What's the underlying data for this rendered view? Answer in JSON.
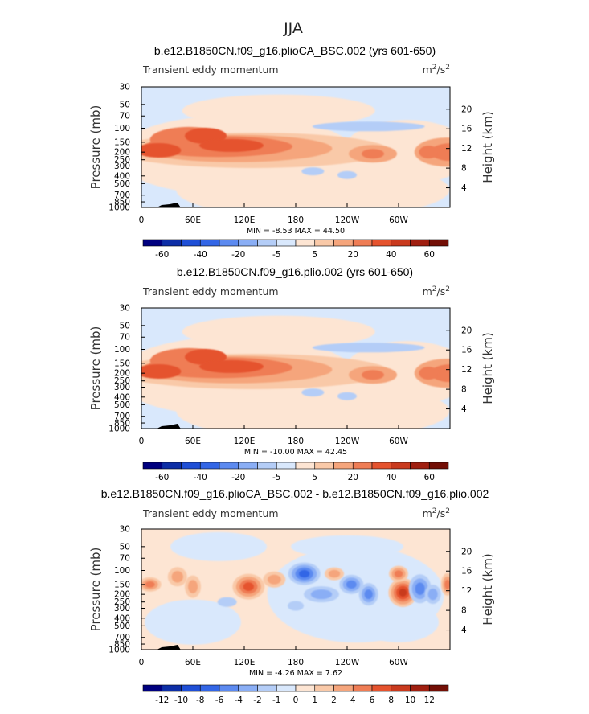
{
  "figure": {
    "season": "JJA"
  },
  "chart_data": [
    {
      "type": "heatmap",
      "panel": "top",
      "title": "b.e12.B1850CN.f09_g16.plioCA_BSC.002 (yrs 601-650)",
      "left_label": "Transient eddy momentum",
      "units": "m²/s²",
      "units_base": "m",
      "units_exp1": "2",
      "units_mid": "/s",
      "units_exp2": "2",
      "ylabel": "Pressure (mb)",
      "y2label": "Height (km)",
      "pressure_ticks": [
        "30",
        "50",
        "70",
        "100",
        "150",
        "200",
        "250",
        "300",
        "400",
        "500",
        "700",
        "850",
        "1000"
      ],
      "height_ticks": [
        "4",
        "8",
        "12",
        "16",
        "20"
      ],
      "x_ticks": [
        "0",
        "60E",
        "120E",
        "180",
        "120W",
        "60W"
      ],
      "stats": "MIN =   -8.53   MAX =   44.50",
      "min": -8.53,
      "max": 44.5,
      "colorbar_ticks": [
        "-60",
        "-40",
        "-20",
        "-5",
        "5",
        "20",
        "40",
        "60"
      ],
      "jet_peak": 44.5
    },
    {
      "type": "heatmap",
      "panel": "middle",
      "title": "b.e12.B1850CN.f09_g16.plio.002 (yrs 601-650)",
      "left_label": "Transient eddy momentum",
      "units": "m²/s²",
      "units_base": "m",
      "units_exp1": "2",
      "units_mid": "/s",
      "units_exp2": "2",
      "ylabel": "Pressure (mb)",
      "y2label": "Height (km)",
      "pressure_ticks": [
        "30",
        "50",
        "70",
        "100",
        "150",
        "200",
        "250",
        "300",
        "400",
        "500",
        "700",
        "850",
        "1000"
      ],
      "height_ticks": [
        "4",
        "8",
        "12",
        "16",
        "20"
      ],
      "x_ticks": [
        "0",
        "60E",
        "120E",
        "180",
        "120W",
        "60W"
      ],
      "stats": "MIN =  -10.00   MAX =   42.45",
      "min": -10.0,
      "max": 42.45,
      "colorbar_ticks": [
        "-60",
        "-40",
        "-20",
        "-5",
        "5",
        "20",
        "40",
        "60"
      ],
      "jet_peak": 42.45
    },
    {
      "type": "heatmap",
      "panel": "bottom",
      "title": "b.e12.B1850CN.f09_g16.plioCA_BSC.002 - b.e12.B1850CN.f09_g16.plio.002",
      "left_label": "Transient eddy momentum",
      "units": "m²/s²",
      "units_base": "m",
      "units_exp1": "2",
      "units_mid": "/s",
      "units_exp2": "2",
      "ylabel": "Pressure (mb)",
      "y2label": "Height (km)",
      "pressure_ticks": [
        "30",
        "50",
        "70",
        "100",
        "150",
        "200",
        "250",
        "300",
        "400",
        "500",
        "700",
        "850",
        "1000"
      ],
      "height_ticks": [
        "4",
        "8",
        "12",
        "16",
        "20"
      ],
      "x_ticks": [
        "0",
        "60E",
        "120E",
        "180",
        "120W",
        "60W"
      ],
      "stats": "MIN =   -4.26   MAX =    7.62",
      "min": -4.26,
      "max": 7.62,
      "colorbar_ticks": [
        "-12",
        "-10",
        "-8",
        "-6",
        "-4",
        "-2",
        "-1",
        "0",
        "1",
        "2",
        "4",
        "6",
        "8",
        "10",
        "12"
      ]
    }
  ],
  "colors": {
    "blues": [
      "#00007f",
      "#0d2ea6",
      "#1f4fd6",
      "#3366e6",
      "#5c8af0",
      "#8aaef5",
      "#b4cdf7",
      "#d9e8fc"
    ],
    "reds": [
      "#fde5d3",
      "#f9c9a8",
      "#f5a57c",
      "#ef7d55",
      "#e5532e",
      "#c93a1e",
      "#a01f10",
      "#730f06"
    ],
    "terrain": "#000000"
  }
}
